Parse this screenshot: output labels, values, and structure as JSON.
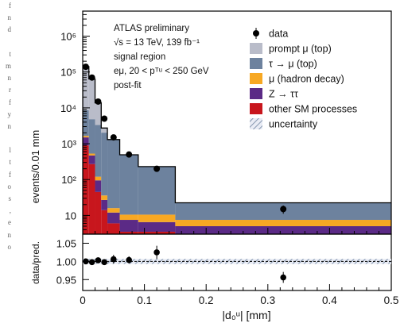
{
  "bleed_text": {
    "lines": [
      "f",
      "n",
      "d",
      "",
      "t",
      "m",
      "n",
      "r",
      "f",
      "y",
      "n",
      "",
      "l",
      "t",
      "f",
      "o",
      "s",
      ",",
      "e",
      "n",
      "o"
    ]
  },
  "chart_data": {
    "type": "bar",
    "stacked": true,
    "y_scale": "log",
    "ylabel": "events/0.01 mm",
    "xlabel": "|d₀ᵘ| [mm]",
    "xlim": [
      0,
      0.5
    ],
    "ylim": [
      3,
      5000000
    ],
    "x_ticks": [
      0,
      0.1,
      0.2,
      0.3,
      0.4,
      0.5
    ],
    "x_tick_labels": [
      "0",
      "0.1",
      "0.2",
      "0.3",
      "0.4",
      "0.5"
    ],
    "y_tick_labels": [
      {
        "value": 10,
        "label": "10"
      },
      {
        "value": 100,
        "label": "10²"
      },
      {
        "value": 1000,
        "label": "10³"
      },
      {
        "value": 10000,
        "label": "10⁴"
      },
      {
        "value": 100000,
        "label": "10⁵"
      },
      {
        "value": 1000000,
        "label": "10⁶"
      }
    ],
    "bin_edges": [
      0,
      0.01,
      0.02,
      0.03,
      0.04,
      0.06,
      0.09,
      0.15,
      0.5
    ],
    "series": [
      {
        "name": "other SM processes",
        "color": "#c8161d",
        "values": [
          900,
          270,
          45,
          14,
          6,
          3.5,
          3.5,
          3
        ]
      },
      {
        "name": "Z → ττ",
        "color": "#5b2a86",
        "values": [
          600,
          200,
          50,
          13,
          6,
          4,
          3,
          2
        ]
      },
      {
        "name": "μ (hadron decay)",
        "color": "#f7a823",
        "values": [
          150,
          60,
          25,
          9,
          4,
          3,
          4,
          2.5
        ]
      },
      {
        "name": "τ → μ (top)",
        "color": "#6d829e",
        "values": [
          7000,
          4300,
          3200,
          2000,
          1290,
          480,
          220,
          15
        ]
      },
      {
        "name": "prompt μ (top)",
        "color": "#b9bcc9",
        "values": [
          133000,
          59000,
          10500,
          700,
          0,
          0,
          0,
          0
        ]
      }
    ],
    "data_points": {
      "name": "data",
      "x": [
        0.005,
        0.015,
        0.025,
        0.035,
        0.05,
        0.075,
        0.12,
        0.325
      ],
      "y": [
        140000,
        70000,
        15000,
        5000,
        1500,
        500,
        200,
        15
      ]
    },
    "ratio_panel": {
      "ylabel": "data/pred.",
      "ylim": [
        0.92,
        1.075
      ],
      "y_tick_labels": [
        {
          "value": 0.95,
          "label": "0.95"
        },
        {
          "value": 1.0,
          "label": "1.00"
        },
        {
          "value": 1.05,
          "label": "1.05"
        }
      ],
      "x": [
        0.005,
        0.015,
        0.025,
        0.035,
        0.05,
        0.075,
        0.12,
        0.325
      ],
      "y": [
        1.0,
        0.998,
        1.003,
        0.998,
        1.006,
        1.004,
        1.025,
        0.956
      ],
      "yerr": [
        0.002,
        0.003,
        0.006,
        0.008,
        0.012,
        0.01,
        0.018,
        0.015
      ],
      "uncertainty": [
        0.007,
        0.007
      ]
    },
    "annotation": {
      "line1": "ATLAS preliminary",
      "line2": "√s = 13 TeV, 139 fb⁻¹",
      "line3": "signal region",
      "line4": "eμ, 20 < pᵀᵘ < 250 GeV",
      "line5": "post-fit"
    },
    "legend": {
      "placement": "top-right",
      "entries": [
        {
          "label": "data",
          "kind": "marker",
          "color": "#000000"
        },
        {
          "label": "prompt μ (top)",
          "kind": "box",
          "color": "#b9bcc9"
        },
        {
          "label": "τ → μ (top)",
          "kind": "box",
          "color": "#6d829e"
        },
        {
          "label": "μ (hadron decay)",
          "kind": "box",
          "color": "#f7a823"
        },
        {
          "label": "Z → ττ",
          "kind": "box",
          "color": "#5b2a86"
        },
        {
          "label": "other SM processes",
          "kind": "box",
          "color": "#c8161d"
        },
        {
          "label": "uncertainty",
          "kind": "hatch",
          "color": "#6d829e"
        }
      ]
    },
    "grid": false
  }
}
